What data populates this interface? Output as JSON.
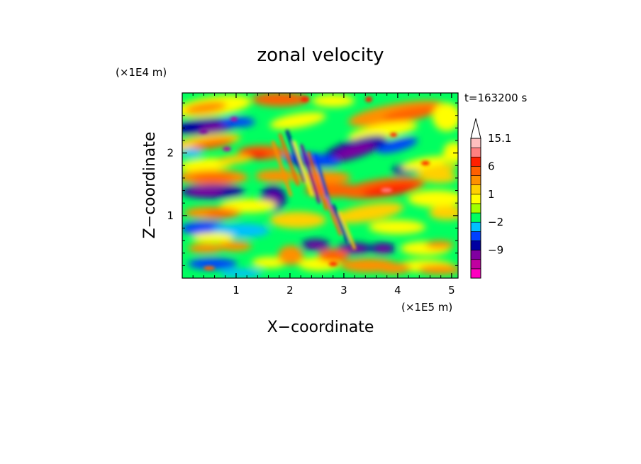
{
  "chart_data": {
    "type": "heatmap",
    "title": "zonal velocity",
    "xlabel": "X−coordinate",
    "ylabel": "Z−coordinate",
    "x_unit": "(×1E5 m)",
    "y_unit": "(×1E4 m)",
    "time_label": "t=163200 s",
    "xlim": [
      0,
      5.12
    ],
    "ylim": [
      0,
      2.96
    ],
    "x_ticks": [
      {
        "value": 1,
        "label": "1"
      },
      {
        "value": 2,
        "label": "2"
      },
      {
        "value": 3,
        "label": "3"
      },
      {
        "value": 4,
        "label": "4"
      },
      {
        "value": 5,
        "label": "5"
      }
    ],
    "y_ticks": [
      {
        "value": 1,
        "label": "1"
      },
      {
        "value": 2,
        "label": "2"
      }
    ],
    "colorbar": {
      "levels": [
        {
          "color": "#ff00c0"
        },
        {
          "color": "#c000a0"
        },
        {
          "color": "#8000a0"
        },
        {
          "color": "#0000a0"
        },
        {
          "color": "#0040ff"
        },
        {
          "color": "#00c0ff"
        },
        {
          "color": "#00ff60"
        },
        {
          "color": "#a0ff00"
        },
        {
          "color": "#ffff00"
        },
        {
          "color": "#ffd000"
        },
        {
          "color": "#ff9000"
        },
        {
          "color": "#ff6000"
        },
        {
          "color": "#ff2000"
        },
        {
          "color": "#ff8080"
        },
        {
          "color": "#ffc0c0"
        }
      ],
      "labels": [
        {
          "level_index": 14,
          "label": "15.1"
        },
        {
          "level_index": 11,
          "label": "6"
        },
        {
          "level_index": 8,
          "label": "1"
        },
        {
          "level_index": 5,
          "label": "−2"
        },
        {
          "level_index": 2,
          "label": "−9"
        }
      ],
      "extend_top": true
    }
  }
}
